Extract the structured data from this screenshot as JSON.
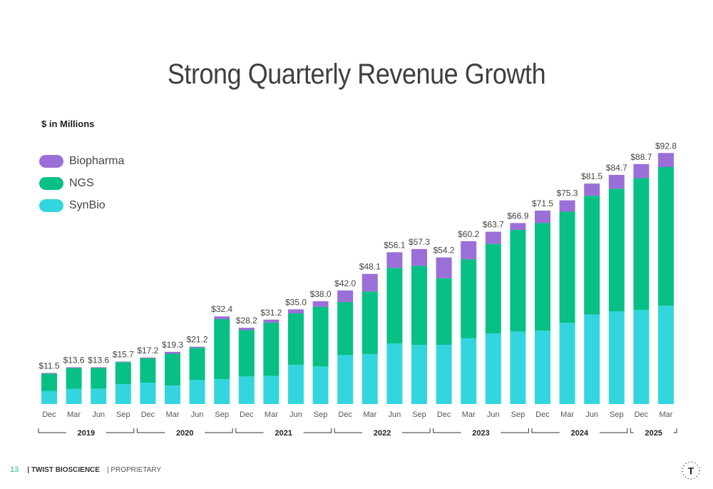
{
  "page": {
    "title": "Strong Quarterly Revenue Growth",
    "units": "$ in Millions"
  },
  "legend": [
    {
      "name": "Biopharma",
      "color": "#9b6fd8"
    },
    {
      "name": "NGS",
      "color": "#06c085"
    },
    {
      "name": "SynBio",
      "color": "#33d6de"
    }
  ],
  "chart_data": {
    "type": "bar",
    "stacked": true,
    "categories": [
      "Dec",
      "Mar",
      "Jun",
      "Sep",
      "Dec",
      "Mar",
      "Jun",
      "Sep",
      "Dec",
      "Mar",
      "Jun",
      "Sep",
      "Dec",
      "Mar",
      "Jun",
      "Sep",
      "Dec",
      "Mar",
      "Jun",
      "Sep",
      "Dec",
      "Mar",
      "Jun",
      "Sep",
      "Dec",
      "Mar"
    ],
    "totals": [
      "$11.5",
      "$13.6",
      "$13.6",
      "$15.7",
      "$17.2",
      "$19.3",
      "$21.2",
      "$32.4",
      "$28.2",
      "$31.2",
      "$35.0",
      "$38.0",
      "$42.0",
      "$48.1",
      "$56.1",
      "$57.3",
      "$54.2",
      "$60.2",
      "$63.7",
      "$66.9",
      "$71.5",
      "$75.3",
      "$81.5",
      "$84.7",
      "$88.7",
      "$92.8"
    ],
    "series": [
      {
        "name": "SynBio",
        "color": "#33d6de",
        "values": [
          4.8,
          5.6,
          5.7,
          7.3,
          7.9,
          6.8,
          8.9,
          9.2,
          10.2,
          10.4,
          14.5,
          13.9,
          18.1,
          18.5,
          22.4,
          21.9,
          21.9,
          24.3,
          26.1,
          26.8,
          27.1,
          30.0,
          33.1,
          34.3,
          34.8,
          36.4
        ],
        "approximate": true
      },
      {
        "name": "NGS",
        "color": "#06c085",
        "values": [
          6.4,
          7.7,
          7.6,
          8.2,
          9.0,
          11.8,
          11.9,
          22.2,
          17.1,
          19.7,
          19.0,
          22.0,
          19.6,
          23.1,
          27.9,
          29.2,
          24.6,
          29.2,
          33.1,
          37.6,
          39.8,
          41.1,
          43.9,
          45.3,
          48.7,
          51.2
        ],
        "approximate": true
      },
      {
        "name": "Biopharma",
        "color": "#9b6fd8",
        "values": [
          0.3,
          0.3,
          0.3,
          0.2,
          0.3,
          0.7,
          0.4,
          1.0,
          0.9,
          1.1,
          1.5,
          2.1,
          4.3,
          6.5,
          5.8,
          6.2,
          7.7,
          6.7,
          4.5,
          2.5,
          4.6,
          4.2,
          4.5,
          5.1,
          5.2,
          5.2
        ],
        "approximate": true
      }
    ],
    "year_groups": [
      {
        "label": "2019",
        "start": 0,
        "end": 3
      },
      {
        "label": "2020",
        "start": 4,
        "end": 7
      },
      {
        "label": "2021",
        "start": 8,
        "end": 11
      },
      {
        "label": "2022",
        "start": 12,
        "end": 15
      },
      {
        "label": "2023",
        "start": 16,
        "end": 19
      },
      {
        "label": "2024",
        "start": 20,
        "end": 23
      },
      {
        "label": "2025",
        "start": 24,
        "end": 25
      }
    ],
    "grid": false,
    "legend_position": "top-left"
  },
  "footer": {
    "page_number": "13",
    "company": "| TWIST BIOSCIENCE",
    "classification": "| PROPRIETARY"
  },
  "logo": {
    "letter": "T"
  }
}
